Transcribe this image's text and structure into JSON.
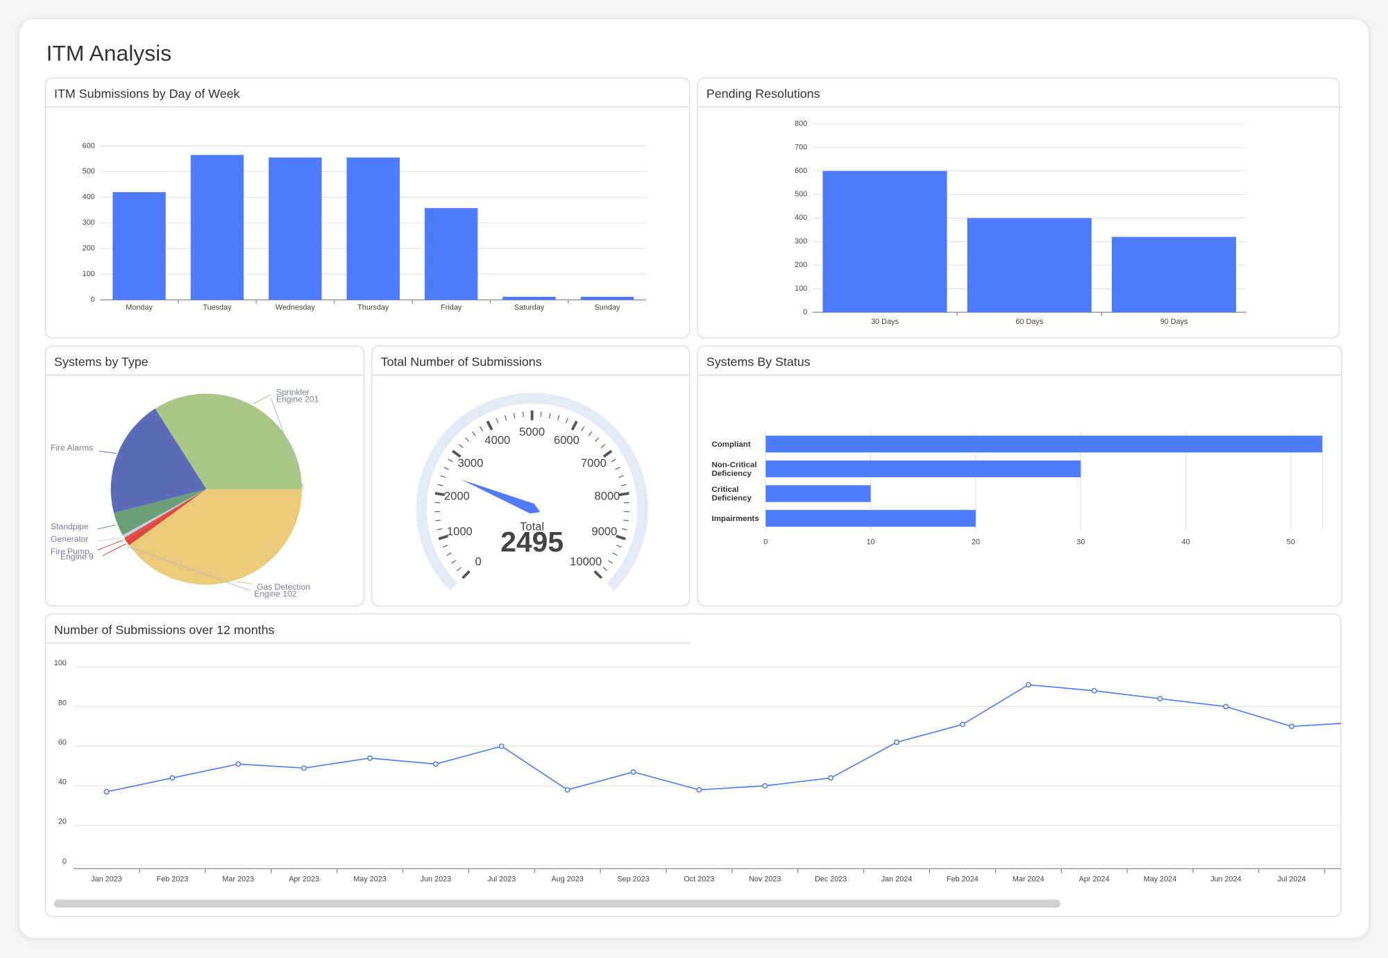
{
  "page_title": "ITM Analysis",
  "chart_data": [
    {
      "type": "bar",
      "title": "ITM Submissions by Day of Week",
      "categories": [
        "Monday",
        "Tuesday",
        "Wednesday",
        "Thursday",
        "Friday",
        "Saturday",
        "Sunday"
      ],
      "values": [
        420,
        565,
        555,
        555,
        358,
        12,
        12
      ],
      "color": "#4f7bff",
      "ylim": [
        0,
        600
      ],
      "yticks": [
        0,
        100,
        200,
        300,
        400,
        500,
        600
      ],
      "grid": true
    },
    {
      "type": "bar",
      "title": "Pending Resolutions",
      "categories": [
        "30 Days",
        "60 Days",
        "90 Days"
      ],
      "values": [
        600,
        400,
        320
      ],
      "color": "#4f7bff",
      "ylim": [
        0,
        800
      ],
      "yticks": [
        0,
        100,
        200,
        300,
        400,
        500,
        600,
        700,
        800
      ],
      "grid": true
    },
    {
      "type": "pie",
      "title": "Systems by Type",
      "categories": [
        "Gas Detection",
        "Engine 102",
        "Engine 9",
        "Fire Pump",
        "Generator",
        "Standpipe",
        "Fire Alarms",
        "Sprinkler",
        "Engine 201"
      ],
      "values": [
        40,
        0,
        1,
        0.5,
        0.5,
        4,
        20,
        34,
        0
      ],
      "colors": [
        "#ebcb7a",
        "#b9b9c9",
        "#e0463c",
        "#d9534f",
        "#c9d2e3",
        "#6a9f78",
        "#5b6bb8",
        "#a8c686",
        "#b9b9c9"
      ]
    },
    {
      "type": "gauge",
      "title": "Total Number of Submissions",
      "label": "Total",
      "value": 2495,
      "ylim": [
        0,
        10000
      ],
      "yticks": [
        0,
        1000,
        2000,
        3000,
        4000,
        5000,
        6000,
        7000,
        8000,
        9000,
        10000
      ],
      "color": "#4f7bff"
    },
    {
      "type": "hbar",
      "title": "Systems By Status",
      "categories": [
        "Compliant",
        "Non-Critical Deficiency",
        "Critical Deficiency",
        "Impairments"
      ],
      "values": [
        53,
        30,
        10,
        20
      ],
      "color": "#4f7bff",
      "xlim": [
        0,
        53
      ],
      "xticks": [
        0,
        10,
        20,
        30,
        40,
        50
      ],
      "grid": true
    },
    {
      "type": "line",
      "title": "Number of Submissions over 12 months",
      "categories": [
        "Jan 2023",
        "Feb 2023",
        "Mar 2023",
        "Apr 2023",
        "May 2023",
        "Jun 2023",
        "Jul 2023",
        "Aug 2023",
        "Sep 2023",
        "Oct 2023",
        "Nov 2023",
        "Dec 2023",
        "Jan 2024",
        "Feb 2024",
        "Mar 2024",
        "Apr 2024",
        "May 2024",
        "Jun 2024",
        "Jul 2024",
        null
      ],
      "values": [
        37,
        44,
        51,
        49,
        54,
        51,
        60,
        38,
        47,
        38,
        40,
        44,
        62,
        71,
        91,
        88,
        84,
        80,
        70,
        72
      ],
      "color": "#4f7bff",
      "ylim": [
        0,
        100
      ],
      "yticks": [
        0,
        20,
        40,
        60,
        80,
        100
      ],
      "grid": true
    }
  ]
}
